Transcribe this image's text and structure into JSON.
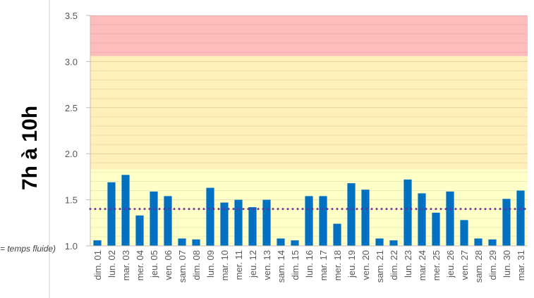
{
  "chart_data": {
    "type": "bar",
    "y_axis_label": "7h à 10h",
    "side_note": "= temps fluide)",
    "categories": [
      "dim. 01",
      "lun. 02",
      "mar. 03",
      "mer. 04",
      "jeu. 05",
      "ven. 06",
      "sam. 07",
      "dim. 08",
      "lun. 09",
      "mar. 10",
      "mer. 11",
      "jeu. 12",
      "ven. 13",
      "sam. 14",
      "dim. 15",
      "lun. 16",
      "mar. 17",
      "mer. 18",
      "jeu. 19",
      "ven. 20",
      "sam. 21",
      "dim. 22",
      "lun. 23",
      "mar. 24",
      "mer. 25",
      "jeu. 26",
      "ven. 27",
      "sam. 28",
      "dim. 29",
      "lun. 30",
      "mar. 31"
    ],
    "values": [
      1.06,
      1.69,
      1.77,
      1.33,
      1.59,
      1.54,
      1.08,
      1.07,
      1.63,
      1.47,
      1.5,
      1.42,
      1.5,
      1.08,
      1.06,
      1.54,
      1.54,
      1.24,
      1.68,
      1.61,
      1.08,
      1.06,
      1.72,
      1.57,
      1.36,
      1.59,
      1.28,
      1.08,
      1.07,
      1.51,
      1.6
    ],
    "color": "#0070c0",
    "reference_line": {
      "value": 1.4,
      "color": "#7030a0"
    },
    "bands": [
      {
        "from": 1.0,
        "to": 1.83,
        "color": "#ffffc8"
      },
      {
        "from": 1.83,
        "to": 3.06,
        "color": "#ffefb8"
      },
      {
        "from": 3.06,
        "to": 3.5,
        "color": "#ffbcbc"
      }
    ],
    "ylim": [
      1.0,
      3.5
    ],
    "yticks": [
      {
        "value": 1.0,
        "label": "1.0"
      },
      {
        "value": 1.5,
        "label": "1.5"
      },
      {
        "value": 2.0,
        "label": "2.0"
      },
      {
        "value": 2.5,
        "label": "2.5"
      },
      {
        "value": 3.0,
        "label": "3.0"
      },
      {
        "value": 3.5,
        "label": "3.5"
      }
    ],
    "grid": true
  }
}
